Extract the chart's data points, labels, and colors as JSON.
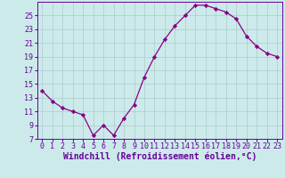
{
  "x": [
    0,
    1,
    2,
    3,
    4,
    5,
    6,
    7,
    8,
    9,
    10,
    11,
    12,
    13,
    14,
    15,
    16,
    17,
    18,
    19,
    20,
    21,
    22,
    23
  ],
  "y": [
    14.0,
    12.5,
    11.5,
    11.0,
    10.5,
    7.5,
    9.0,
    7.5,
    10.0,
    12.0,
    16.0,
    19.0,
    21.5,
    23.5,
    25.0,
    26.5,
    26.5,
    26.0,
    25.5,
    24.5,
    22.0,
    20.5,
    19.5,
    19.0
  ],
  "line_color": "#880088",
  "marker": "D",
  "marker_size": 2.2,
  "background_color": "#cceaea",
  "grid_color": "#aacccc",
  "xlabel": "Windchill (Refroidissement éolien,°C)",
  "xlim_min": -0.5,
  "xlim_max": 23.5,
  "ylim_min": 7,
  "ylim_max": 27,
  "yticks": [
    7,
    9,
    11,
    13,
    15,
    17,
    19,
    21,
    23,
    25
  ],
  "xticks": [
    0,
    1,
    2,
    3,
    4,
    5,
    6,
    7,
    8,
    9,
    10,
    11,
    12,
    13,
    14,
    15,
    16,
    17,
    18,
    19,
    20,
    21,
    22,
    23
  ],
  "tick_fontsize": 6.0,
  "xlabel_fontsize": 7.0,
  "axis_color": "#660099"
}
